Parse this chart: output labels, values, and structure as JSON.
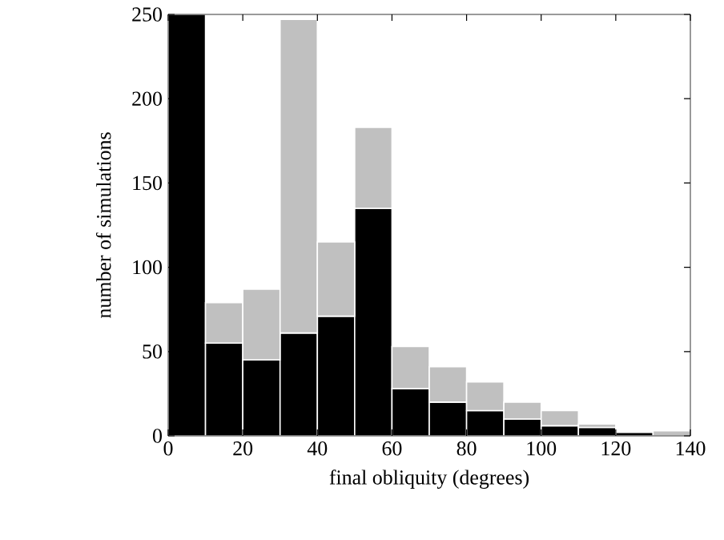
{
  "chart_data": {
    "type": "bar",
    "xlabel": "final obliquity (degrees)",
    "ylabel": "number of simulations",
    "stacked": true,
    "x": [
      5,
      15,
      25,
      35,
      45,
      55,
      65,
      75,
      85,
      95,
      105,
      115,
      125,
      135
    ],
    "series": [
      {
        "color": "#000000",
        "values": [
          250,
          55,
          45,
          61,
          71,
          135,
          28,
          20,
          15,
          10,
          6,
          5,
          2,
          0
        ]
      },
      {
        "color": "#c0c0c0",
        "values": [
          null,
          24,
          42,
          186,
          44,
          48,
          25,
          21,
          17,
          10,
          9,
          2,
          0,
          3
        ]
      }
    ],
    "xlim": [
      0,
      140
    ],
    "xticks": [
      0,
      20,
      40,
      60,
      80,
      100,
      120,
      140
    ],
    "ylim": [
      0,
      250
    ],
    "yticks": [
      0,
      50,
      100,
      150,
      200,
      250
    ],
    "grid": false
  }
}
